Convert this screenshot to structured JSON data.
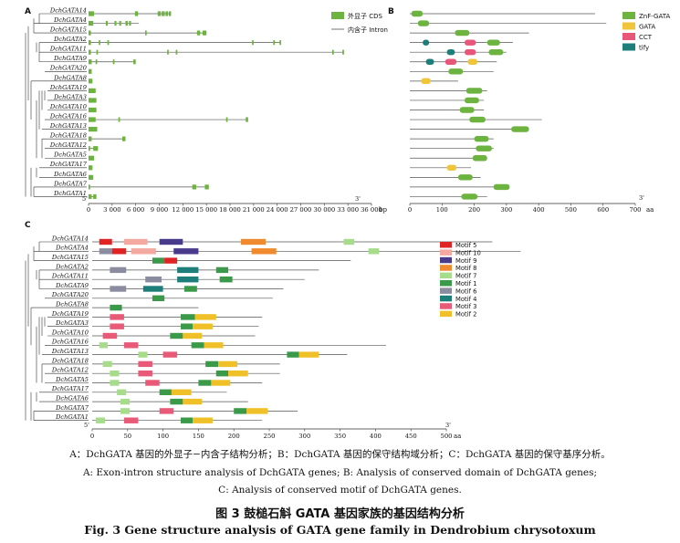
{
  "figure": {
    "panel_a": {
      "label": "A",
      "genes": [
        "DchGATA14",
        "DchGATA4",
        "DchGATA15",
        "DchGATA2",
        "DchGATA11",
        "DchGATA9",
        "DchGATA20",
        "DchGATA8",
        "DchGATA19",
        "DchGATA3",
        "DchGATA10",
        "DchGATA16",
        "DchGATA13",
        "DchGATA18",
        "DchGATA12",
        "DchGATA5",
        "DchGATA17",
        "DchGATA6",
        "DchGATA7",
        "DchGATA1"
      ],
      "legend": [
        "外显子 CDS",
        "内含子 Intron"
      ],
      "end5": "5'",
      "end3": "3'",
      "axis_unit": "bp",
      "ticks": [
        "0",
        "3 000",
        "6 000",
        "9 000",
        "12 000",
        "15 000",
        "18 000",
        "21 000",
        "24 000",
        "27 000",
        "30 000",
        "33 000",
        "36 000"
      ],
      "colors": {
        "exon": "#6db33f",
        "intron": "#555555"
      }
    },
    "panel_b": {
      "label": "B",
      "legend": [
        "ZnF-GATA",
        "GATA",
        "CCT",
        "tify"
      ],
      "end3": "3'",
      "axis_unit": "aa",
      "ticks": [
        "0",
        "100",
        "200",
        "300",
        "400",
        "500",
        "600",
        "700"
      ],
      "colors": {
        "ZnF-GATA": "#6db33f",
        "GATA": "#f0c53a",
        "CCT": "#e8577a",
        "tify": "#1e7f7a"
      }
    },
    "panel_c": {
      "label": "C",
      "genes": [
        "DchGATA14",
        "DchGATA4",
        "DchGATA15",
        "DchGATA2",
        "DchGATA11",
        "DchGATA9",
        "DchGATA20",
        "DchGATA8",
        "DchGATA19",
        "DchGATA3",
        "DchGATA10",
        "DchGATA16",
        "DchGATA13",
        "DchGATA18",
        "DchGATA12",
        "DchGATA5",
        "DchGATA17",
        "DchGATA6",
        "DchGATA7",
        "DchGATA1"
      ],
      "legend": [
        "Motif 5",
        "Motif 10",
        "Motif 9",
        "Motif 8",
        "Motif 7",
        "Motif 1",
        "Motif 6",
        "Motif 4",
        "Motif 3",
        "Motif 2"
      ],
      "end5": "5'",
      "end3": "3'",
      "axis_unit": "aa",
      "ticks": [
        "0",
        "50",
        "100",
        "150",
        "200",
        "250",
        "300",
        "350",
        "400",
        "450",
        "500"
      ],
      "colors": {
        "Motif 5": "#e02424",
        "Motif 10": "#f4a9a0",
        "Motif 9": "#4a3a8c",
        "Motif 8": "#f08a2e",
        "Motif 7": "#a6dc8a",
        "Motif 1": "#3a9a4a",
        "Motif 6": "#8c8ca0",
        "Motif 4": "#1e7f7a",
        "Motif 3": "#e85a78",
        "Motif 2": "#f0c028"
      }
    }
  },
  "caption": {
    "zh": "A：DchGATA 基因的外显子−内含子结构分析；B：DchGATA 基因的保守结构域分析；C：DchGATA 基因的保守基序分析。",
    "en": "A: Exon-intron structure analysis of DchGATA genes; B: Analysis of conserved domain of DchGATA genes;",
    "en_c": "C: Analysis of conserved motif of DchGATA genes.",
    "title_zh": "图 3    鼓槌石斛 GATA 基因家族的基因结构分析",
    "title_en": "Fig. 3    Gene structure analysis of GATA gene family in Dendrobium chrysotoxum"
  }
}
